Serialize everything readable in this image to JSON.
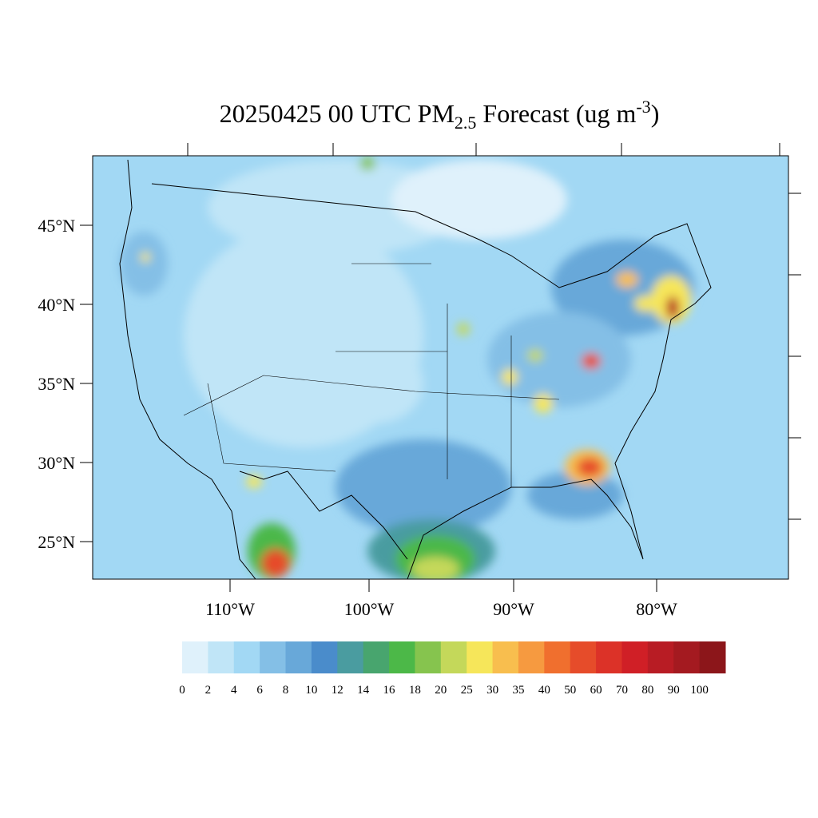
{
  "header": {
    "title": {
      "main": "20250425 00 UTC PM",
      "subscript": "2.5",
      "middle": " Forecast (ug m",
      "superscript": "-3",
      "end": ")"
    }
  },
  "map": {
    "lat_labels": [
      "45°N",
      "40°N",
      "35°N",
      "30°N",
      "25°N"
    ],
    "lon_labels": [
      "110°W",
      "100°W",
      "90°W",
      "80°W"
    ]
  },
  "colorbar": {
    "labels": [
      "0",
      "2",
      "4",
      "6",
      "8",
      "10",
      "12",
      "14",
      "16",
      "18",
      "20",
      "25",
      "30",
      "35",
      "40",
      "50",
      "60",
      "70",
      "80",
      "90",
      "100"
    ],
    "colors": [
      "#dff1fb",
      "#c0e5f7",
      "#a2d8f4",
      "#84bfe6",
      "#68a8d9",
      "#4a8ccb",
      "#4a9ca0",
      "#48a56e",
      "#4cb848",
      "#86c44e",
      "#c4d85a",
      "#f6e65a",
      "#f8be4e",
      "#f69a40",
      "#f06f2e",
      "#e64c2a",
      "#dc3228",
      "#d01f26",
      "#b81c24",
      "#a41a20",
      "#8c161a"
    ]
  }
}
